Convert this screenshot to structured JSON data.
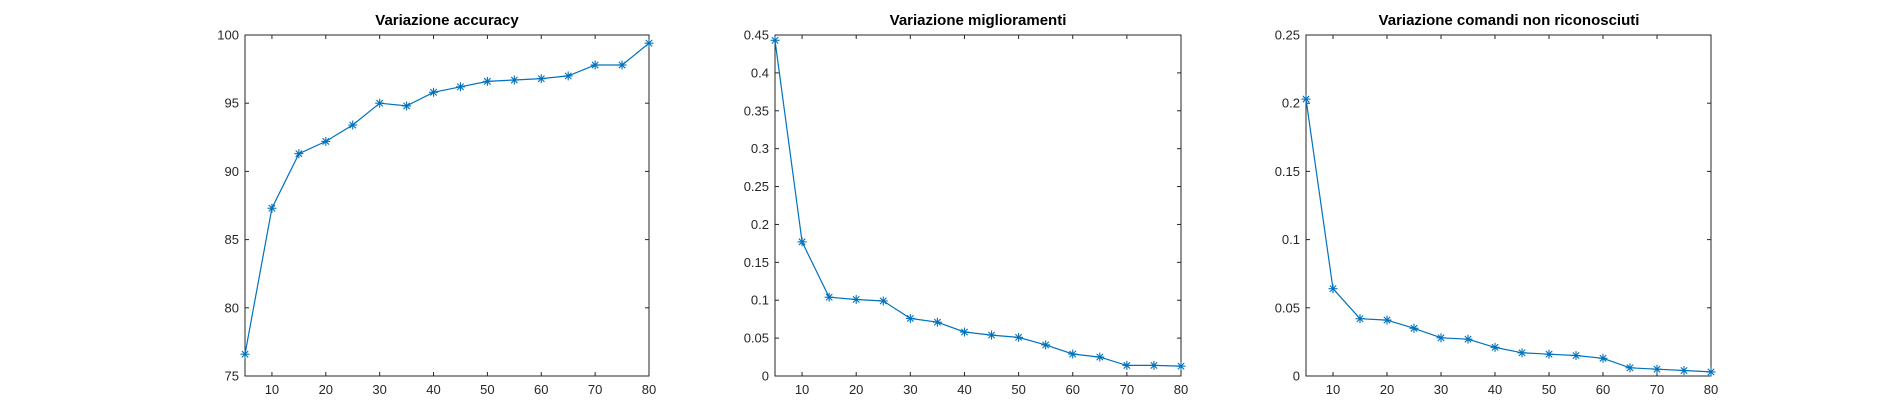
{
  "figure": {
    "background": "#ffffff",
    "line_color": "#0072bd",
    "axis_color": "#262626"
  },
  "chart_data": [
    {
      "type": "line",
      "title": "Variazione accuracy",
      "xlabel": "",
      "ylabel": "",
      "marker": "asterisk",
      "grid": false,
      "xlim": [
        5,
        80
      ],
      "ylim": [
        75,
        100
      ],
      "xticks": [
        10,
        20,
        30,
        40,
        50,
        60,
        70,
        80
      ],
      "yticks": [
        75,
        80,
        85,
        90,
        95,
        100
      ],
      "ytick_labels": [
        "75",
        "80",
        "85",
        "90",
        "95",
        "100"
      ],
      "x": [
        5,
        10,
        15,
        20,
        25,
        30,
        35,
        40,
        45,
        50,
        55,
        60,
        65,
        70,
        75,
        80
      ],
      "y": [
        76.6,
        87.3,
        91.3,
        92.2,
        93.4,
        95.0,
        94.8,
        95.8,
        96.2,
        96.6,
        96.7,
        96.8,
        97.0,
        97.8,
        97.8,
        99.4
      ]
    },
    {
      "type": "line",
      "title": "Variazione miglioramenti",
      "xlabel": "",
      "ylabel": "",
      "marker": "asterisk",
      "grid": false,
      "xlim": [
        5,
        80
      ],
      "ylim": [
        0,
        0.45
      ],
      "xticks": [
        10,
        20,
        30,
        40,
        50,
        60,
        70,
        80
      ],
      "yticks": [
        0,
        0.05,
        0.1,
        0.15,
        0.2,
        0.25,
        0.3,
        0.35,
        0.4,
        0.45
      ],
      "ytick_labels": [
        "0",
        "0.05",
        "0.1",
        "0.15",
        "0.2",
        "0.25",
        "0.3",
        "0.35",
        "0.4",
        "0.45"
      ],
      "x": [
        5,
        10,
        15,
        20,
        25,
        30,
        35,
        40,
        45,
        50,
        55,
        60,
        65,
        70,
        75,
        80
      ],
      "y": [
        0.443,
        0.177,
        0.104,
        0.101,
        0.099,
        0.076,
        0.071,
        0.058,
        0.054,
        0.051,
        0.041,
        0.029,
        0.025,
        0.014,
        0.014,
        0.013
      ]
    },
    {
      "type": "line",
      "title": "Variazione comandi non riconosciuti",
      "xlabel": "",
      "ylabel": "",
      "marker": "asterisk",
      "grid": false,
      "xlim": [
        5,
        80
      ],
      "ylim": [
        0,
        0.25
      ],
      "xticks": [
        10,
        20,
        30,
        40,
        50,
        60,
        70,
        80
      ],
      "yticks": [
        0,
        0.05,
        0.1,
        0.15,
        0.2,
        0.25
      ],
      "ytick_labels": [
        "0",
        "0.05",
        "0.1",
        "0.15",
        "0.2",
        "0.25"
      ],
      "x": [
        5,
        10,
        15,
        20,
        25,
        30,
        35,
        40,
        45,
        50,
        55,
        60,
        65,
        70,
        75,
        80
      ],
      "y": [
        0.203,
        0.064,
        0.042,
        0.041,
        0.035,
        0.028,
        0.027,
        0.021,
        0.017,
        0.016,
        0.015,
        0.013,
        0.006,
        0.005,
        0.004,
        0.003
      ]
    }
  ]
}
